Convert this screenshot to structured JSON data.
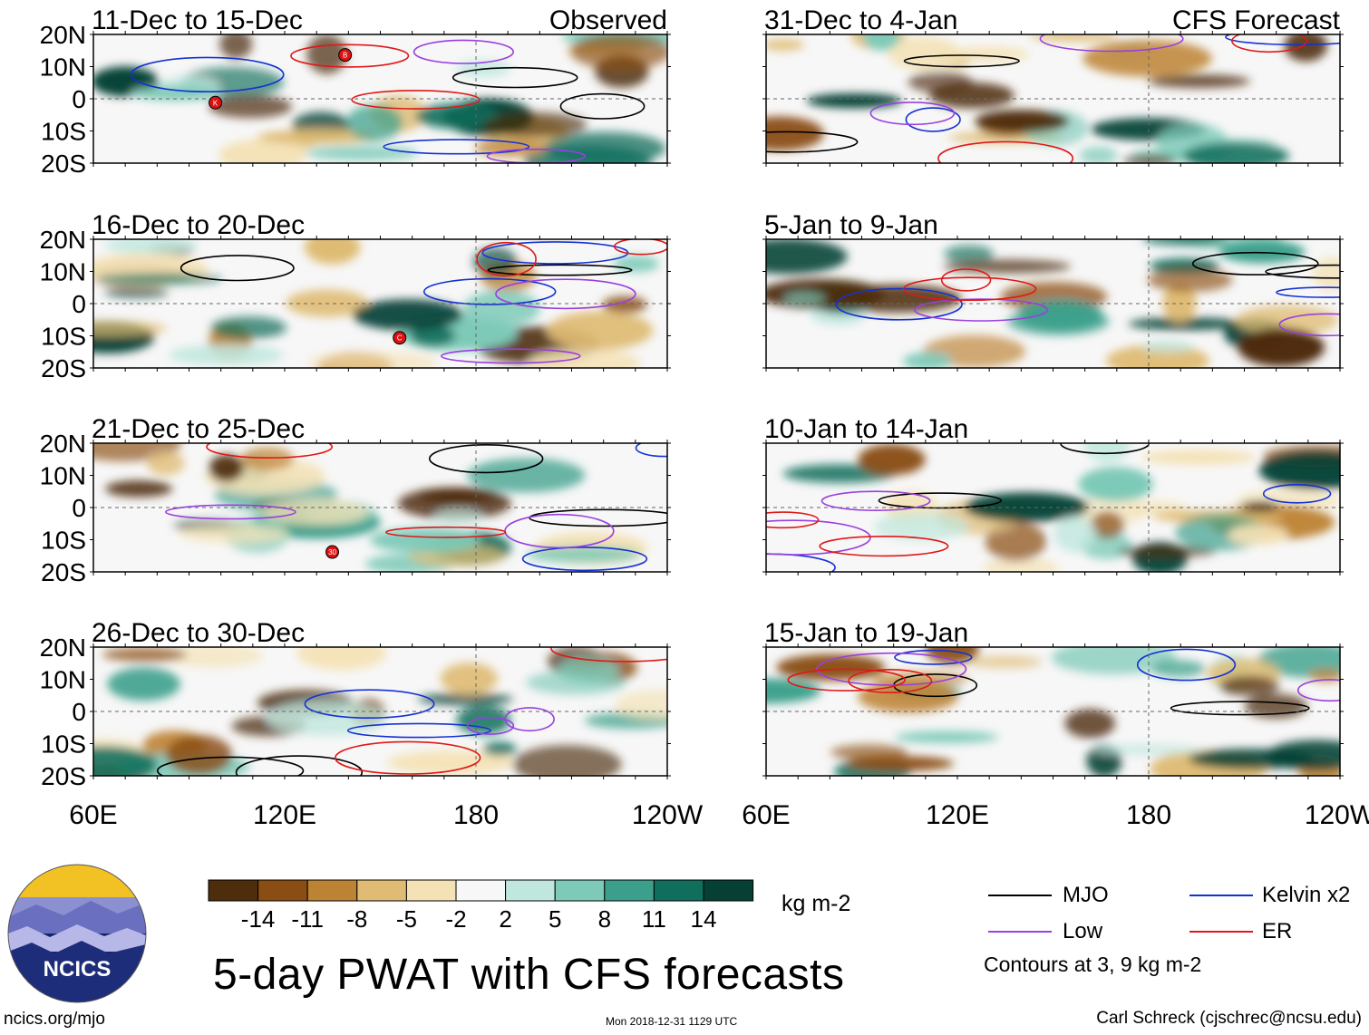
{
  "chart_data": {
    "type": "heatmap",
    "title": "5-day PWAT with CFS forecasts",
    "units": "kg m-2",
    "columns": [
      {
        "name": "observed",
        "label": "Observed"
      },
      {
        "name": "forecast",
        "label": "CFS Forecast"
      }
    ],
    "panels": [
      {
        "period": "11-Dec to 15-Dec",
        "column": "observed",
        "tag": "Observed"
      },
      {
        "period": "16-Dec to 20-Dec",
        "column": "observed",
        "tag": ""
      },
      {
        "period": "21-Dec to 25-Dec",
        "column": "observed",
        "tag": ""
      },
      {
        "period": "26-Dec to 30-Dec",
        "column": "observed",
        "tag": ""
      },
      {
        "period": "31-Dec to 4-Jan",
        "column": "forecast",
        "tag": "CFS Forecast"
      },
      {
        "period": "5-Jan to 9-Jan",
        "column": "forecast",
        "tag": ""
      },
      {
        "period": "10-Jan to 14-Jan",
        "column": "forecast",
        "tag": ""
      },
      {
        "period": "15-Jan to 19-Jan",
        "column": "forecast",
        "tag": ""
      }
    ],
    "x_axis": {
      "ticks": [
        "60E",
        "120E",
        "180",
        "120W"
      ],
      "range_deg_east": [
        60,
        240
      ]
    },
    "y_axis": {
      "ticks": [
        "20N",
        "10N",
        "0",
        "10S",
        "20S"
      ],
      "range_deg": [
        -20,
        20
      ]
    },
    "colorbar": {
      "levels": [
        "-14",
        "-11",
        "-8",
        "-5",
        "-2",
        "2",
        "5",
        "8",
        "11",
        "14"
      ],
      "colors": [
        "#4e2d0c",
        "#8a4e14",
        "#bd8334",
        "#dfbb73",
        "#f4e2b6",
        "#f7f7f7",
        "#c0e7de",
        "#7ecab8",
        "#3b9f8b",
        "#0f6e5c",
        "#063f33"
      ]
    },
    "contour_legend": [
      {
        "name": "MJO",
        "color": "#000000"
      },
      {
        "name": "Kelvin x2",
        "color": "#1432d2"
      },
      {
        "name": "Low",
        "color": "#9a3fe0"
      },
      {
        "name": "ER",
        "color": "#e01818"
      }
    ],
    "contour_note": "Contours at 3, 9 kg m-2",
    "storm_markers": [
      {
        "panel": 0,
        "label": "B"
      },
      {
        "panel": 0,
        "label": "K"
      },
      {
        "panel": 1,
        "label": "C"
      },
      {
        "panel": 2,
        "label": "30"
      }
    ]
  },
  "footer": {
    "left": "ncics.org/mjo",
    "center": "Mon 2018-12-31 1129 UTC",
    "right": "Carl Schreck (cjschrec@ncsu.edu)"
  },
  "logo": {
    "text": "NCICS"
  }
}
